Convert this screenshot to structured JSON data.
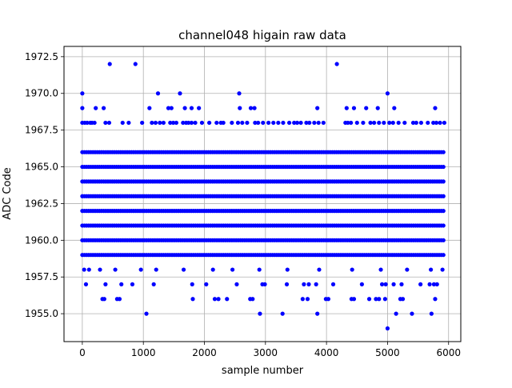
{
  "chart_data": {
    "type": "scatter",
    "title": "channel048 higain raw data",
    "xlabel": "sample number",
    "ylabel": "ADC Code",
    "xlim": [
      -300,
      6200
    ],
    "ylim": [
      1953.1,
      1973.2
    ],
    "xticks": [
      0,
      1000,
      2000,
      3000,
      4000,
      5000,
      6000
    ],
    "xtick_labels": [
      "0",
      "1000",
      "2000",
      "3000",
      "4000",
      "5000",
      "6000"
    ],
    "yticks": [
      1955.0,
      1957.5,
      1960.0,
      1962.5,
      1965.0,
      1967.5,
      1970.0,
      1972.5
    ],
    "ytick_labels": [
      "1955.0",
      "1957.5",
      "1960.0",
      "1962.5",
      "1965.0",
      "1967.5",
      "1970.0",
      "1972.5"
    ],
    "grid": true,
    "marker_color": "#0000ff",
    "series": [
      {
        "dense_rows": [
          {
            "y": 1959,
            "x_range": [
              0,
              5935
            ]
          },
          {
            "y": 1960,
            "x_range": [
              0,
              5935
            ]
          },
          {
            "y": 1961,
            "x_range": [
              0,
              5935
            ]
          },
          {
            "y": 1962,
            "x_range": [
              0,
              5935
            ]
          },
          {
            "y": 1963,
            "x_range": [
              0,
              5935
            ]
          },
          {
            "y": 1964,
            "x_range": [
              0,
              5935
            ]
          },
          {
            "y": 1965,
            "x_range": [
              0,
              5935
            ]
          },
          {
            "y": 1966,
            "x_range": [
              0,
              5935
            ]
          }
        ],
        "points": [
          [
            450,
            1972
          ],
          [
            870,
            1972
          ],
          [
            4170,
            1972
          ],
          [
            0,
            1970
          ],
          [
            1240,
            1970
          ],
          [
            1600,
            1970
          ],
          [
            2570,
            1970
          ],
          [
            5000,
            1970
          ],
          [
            0,
            1969
          ],
          [
            220,
            1969
          ],
          [
            350,
            1969
          ],
          [
            1100,
            1969
          ],
          [
            1410,
            1969
          ],
          [
            1460,
            1969
          ],
          [
            1680,
            1969
          ],
          [
            1790,
            1969
          ],
          [
            1910,
            1969
          ],
          [
            2580,
            1969
          ],
          [
            2760,
            1969
          ],
          [
            2820,
            1969
          ],
          [
            3850,
            1969
          ],
          [
            4330,
            1969
          ],
          [
            4450,
            1969
          ],
          [
            4650,
            1969
          ],
          [
            4840,
            1969
          ],
          [
            5110,
            1969
          ],
          [
            5780,
            1969
          ],
          [
            0,
            1968
          ],
          [
            40,
            1968
          ],
          [
            80,
            1968
          ],
          [
            130,
            1968
          ],
          [
            160,
            1968
          ],
          [
            200,
            1968
          ],
          [
            380,
            1968
          ],
          [
            440,
            1968
          ],
          [
            660,
            1968
          ],
          [
            760,
            1968
          ],
          [
            980,
            1968
          ],
          [
            1140,
            1968
          ],
          [
            1200,
            1968
          ],
          [
            1270,
            1968
          ],
          [
            1330,
            1968
          ],
          [
            1440,
            1968
          ],
          [
            1490,
            1968
          ],
          [
            1540,
            1968
          ],
          [
            1650,
            1968
          ],
          [
            1700,
            1968
          ],
          [
            1740,
            1968
          ],
          [
            1790,
            1968
          ],
          [
            1850,
            1968
          ],
          [
            1960,
            1968
          ],
          [
            2080,
            1968
          ],
          [
            2200,
            1968
          ],
          [
            2270,
            1968
          ],
          [
            2310,
            1968
          ],
          [
            2450,
            1968
          ],
          [
            2550,
            1968
          ],
          [
            2620,
            1968
          ],
          [
            2700,
            1968
          ],
          [
            2830,
            1968
          ],
          [
            2880,
            1968
          ],
          [
            2960,
            1968
          ],
          [
            3050,
            1968
          ],
          [
            3130,
            1968
          ],
          [
            3210,
            1968
          ],
          [
            3290,
            1968
          ],
          [
            3390,
            1968
          ],
          [
            3470,
            1968
          ],
          [
            3520,
            1968
          ],
          [
            3580,
            1968
          ],
          [
            3670,
            1968
          ],
          [
            3720,
            1968
          ],
          [
            3800,
            1968
          ],
          [
            3870,
            1968
          ],
          [
            3950,
            1968
          ],
          [
            4310,
            1968
          ],
          [
            4350,
            1968
          ],
          [
            4400,
            1968
          ],
          [
            4500,
            1968
          ],
          [
            4600,
            1968
          ],
          [
            4720,
            1968
          ],
          [
            4780,
            1968
          ],
          [
            4860,
            1968
          ],
          [
            4940,
            1968
          ],
          [
            5030,
            1968
          ],
          [
            5090,
            1968
          ],
          [
            5180,
            1968
          ],
          [
            5280,
            1968
          ],
          [
            5420,
            1968
          ],
          [
            5470,
            1968
          ],
          [
            5550,
            1968
          ],
          [
            5660,
            1968
          ],
          [
            5750,
            1968
          ],
          [
            5800,
            1968
          ],
          [
            5860,
            1968
          ],
          [
            5930,
            1968
          ],
          [
            30,
            1958
          ],
          [
            110,
            1958
          ],
          [
            290,
            1958
          ],
          [
            540,
            1958
          ],
          [
            960,
            1958
          ],
          [
            1210,
            1958
          ],
          [
            1660,
            1958
          ],
          [
            2140,
            1958
          ],
          [
            2460,
            1958
          ],
          [
            2900,
            1958
          ],
          [
            3360,
            1958
          ],
          [
            3880,
            1958
          ],
          [
            4420,
            1958
          ],
          [
            4890,
            1958
          ],
          [
            5320,
            1958
          ],
          [
            5710,
            1958
          ],
          [
            5900,
            1958
          ],
          [
            60,
            1957
          ],
          [
            380,
            1957
          ],
          [
            640,
            1957
          ],
          [
            820,
            1957
          ],
          [
            1170,
            1957
          ],
          [
            1800,
            1957
          ],
          [
            2030,
            1957
          ],
          [
            2530,
            1957
          ],
          [
            2950,
            1957
          ],
          [
            2990,
            1957
          ],
          [
            3350,
            1957
          ],
          [
            3630,
            1957
          ],
          [
            3710,
            1957
          ],
          [
            3830,
            1957
          ],
          [
            4110,
            1957
          ],
          [
            4580,
            1957
          ],
          [
            4910,
            1957
          ],
          [
            4970,
            1957
          ],
          [
            5100,
            1957
          ],
          [
            5230,
            1957
          ],
          [
            5540,
            1957
          ],
          [
            5690,
            1957
          ],
          [
            5760,
            1957
          ],
          [
            5810,
            1957
          ],
          [
            330,
            1956
          ],
          [
            360,
            1956
          ],
          [
            570,
            1956
          ],
          [
            610,
            1956
          ],
          [
            1810,
            1956
          ],
          [
            2170,
            1956
          ],
          [
            2230,
            1956
          ],
          [
            2370,
            1956
          ],
          [
            2750,
            1956
          ],
          [
            2790,
            1956
          ],
          [
            3610,
            1956
          ],
          [
            3690,
            1956
          ],
          [
            3990,
            1956
          ],
          [
            4030,
            1956
          ],
          [
            4410,
            1956
          ],
          [
            4450,
            1956
          ],
          [
            4700,
            1956
          ],
          [
            4810,
            1956
          ],
          [
            4860,
            1956
          ],
          [
            4960,
            1956
          ],
          [
            5210,
            1956
          ],
          [
            5250,
            1956
          ],
          [
            5780,
            1956
          ],
          [
            1050,
            1955
          ],
          [
            2910,
            1955
          ],
          [
            3280,
            1955
          ],
          [
            3850,
            1955
          ],
          [
            5140,
            1955
          ],
          [
            5400,
            1955
          ],
          [
            5720,
            1955
          ],
          [
            5000,
            1954
          ]
        ]
      }
    ]
  }
}
